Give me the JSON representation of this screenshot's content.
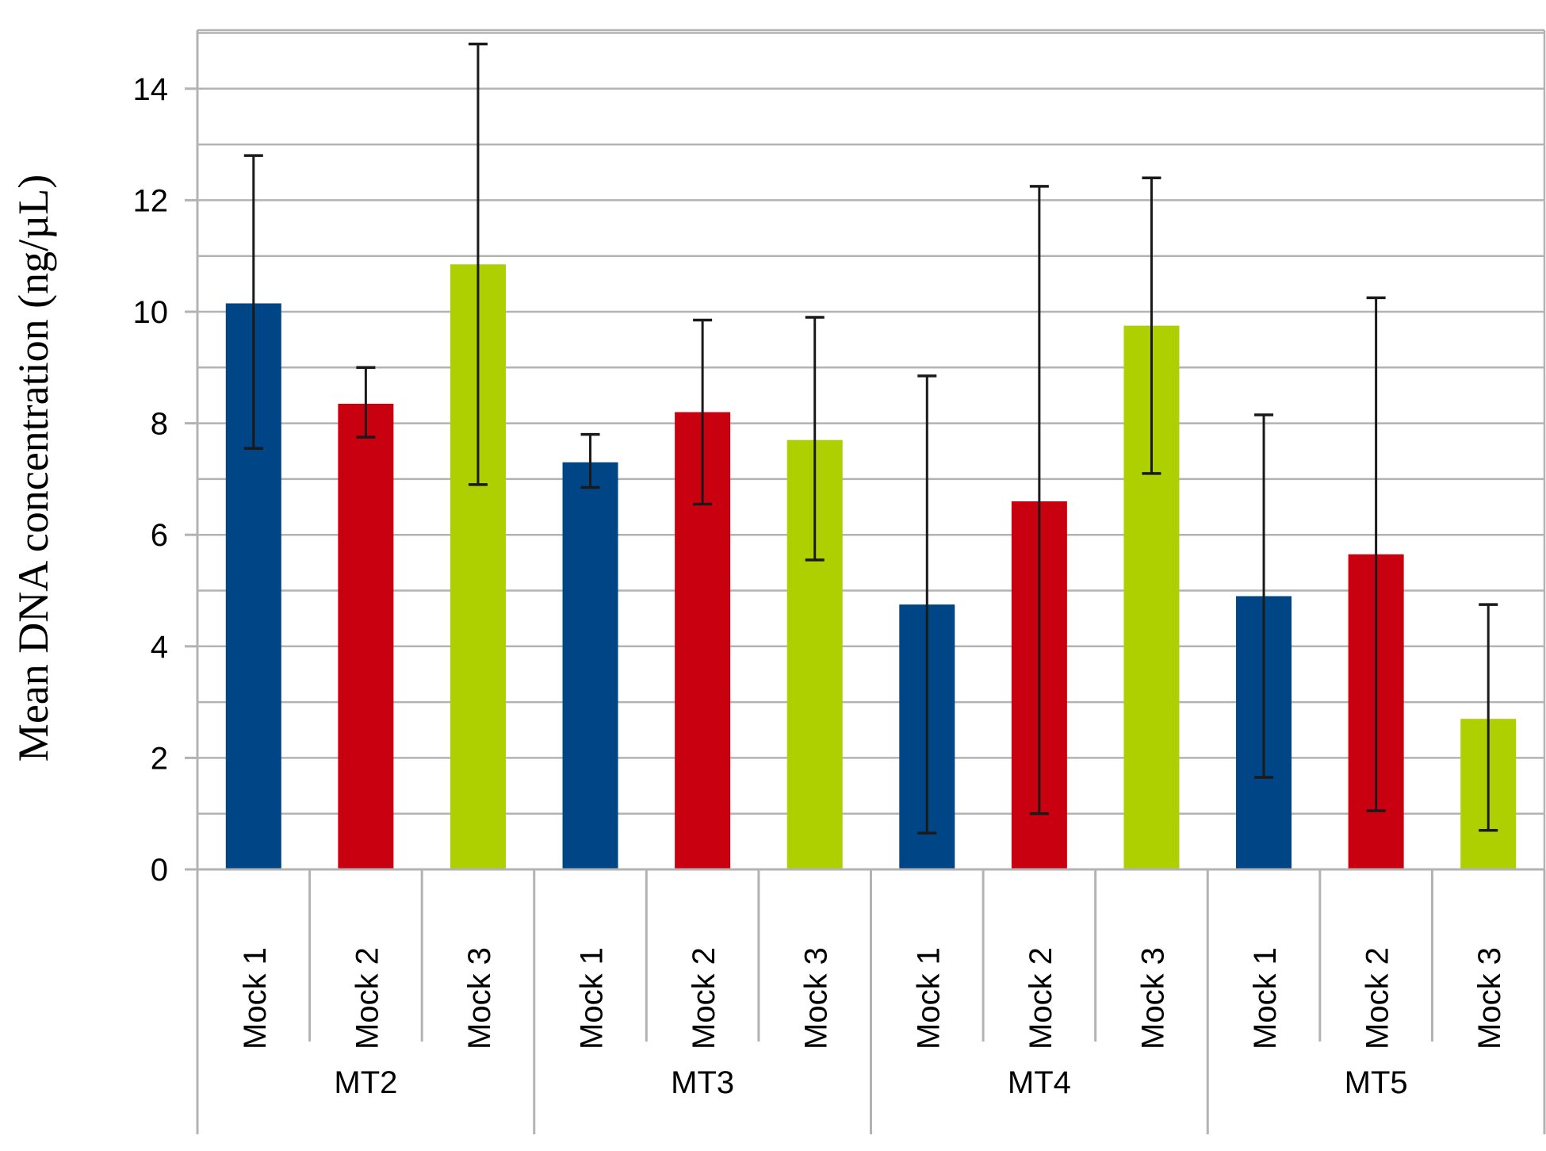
{
  "chart_data": {
    "type": "bar",
    "title": "",
    "ylabel": "Mean DNA concentration (ng/µL)",
    "xlabel": "",
    "ylim": [
      0,
      15
    ],
    "yticks": [
      0,
      2,
      4,
      6,
      8,
      10,
      12,
      14
    ],
    "grid": true,
    "legend": "none",
    "groups": [
      {
        "label": "MT2",
        "categories": [
          "Mock 1",
          "Mock 2",
          "Mock 3"
        ]
      },
      {
        "label": "MT3",
        "categories": [
          "Mock 1",
          "Mock 2",
          "Mock 3"
        ]
      },
      {
        "label": "MT4",
        "categories": [
          "Mock 1",
          "Mock 2",
          "Mock 3"
        ]
      },
      {
        "label": "MT5",
        "categories": [
          "Mock 1",
          "Mock 2",
          "Mock 3"
        ]
      }
    ],
    "bars": [
      {
        "group": "MT2",
        "category": "Mock 1",
        "value": 10.15,
        "err_low": 7.55,
        "err_high": 12.8,
        "color": "#004586"
      },
      {
        "group": "MT2",
        "category": "Mock 2",
        "value": 8.35,
        "err_low": 7.75,
        "err_high": 9.0,
        "color": "#c9000f"
      },
      {
        "group": "MT2",
        "category": "Mock 3",
        "value": 10.85,
        "err_low": 6.9,
        "err_high": 14.8,
        "color": "#aecf00"
      },
      {
        "group": "MT3",
        "category": "Mock 1",
        "value": 7.3,
        "err_low": 6.85,
        "err_high": 7.8,
        "color": "#004586"
      },
      {
        "group": "MT3",
        "category": "Mock 2",
        "value": 8.2,
        "err_low": 6.55,
        "err_high": 9.85,
        "color": "#c9000f"
      },
      {
        "group": "MT3",
        "category": "Mock 3",
        "value": 7.7,
        "err_low": 5.55,
        "err_high": 9.9,
        "color": "#aecf00"
      },
      {
        "group": "MT4",
        "category": "Mock 1",
        "value": 4.75,
        "err_low": 0.65,
        "err_high": 8.85,
        "color": "#004586"
      },
      {
        "group": "MT4",
        "category": "Mock 2",
        "value": 6.6,
        "err_low": 1.0,
        "err_high": 12.25,
        "color": "#c9000f"
      },
      {
        "group": "MT4",
        "category": "Mock 3",
        "value": 9.75,
        "err_low": 7.1,
        "err_high": 12.4,
        "color": "#aecf00"
      },
      {
        "group": "MT5",
        "category": "Mock 1",
        "value": 4.9,
        "err_low": 1.65,
        "err_high": 8.15,
        "color": "#004586"
      },
      {
        "group": "MT5",
        "category": "Mock 2",
        "value": 5.65,
        "err_low": 1.05,
        "err_high": 10.25,
        "color": "#c9000f"
      },
      {
        "group": "MT5",
        "category": "Mock 3",
        "value": 2.7,
        "err_low": 0.7,
        "err_high": 4.75,
        "color": "#aecf00"
      }
    ]
  }
}
